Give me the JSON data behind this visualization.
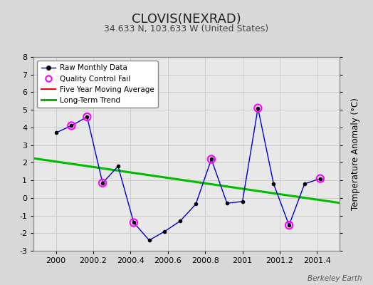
{
  "title": "CLOVIS(NEXRAD)",
  "subtitle": "34.633 N, 103.633 W (United States)",
  "watermark": "Berkeley Earth",
  "ylabel": "Temperature Anomaly (°C)",
  "ylim": [
    -3,
    8
  ],
  "yticks": [
    -3,
    -2,
    -1,
    0,
    1,
    2,
    3,
    4,
    5,
    6,
    7,
    8
  ],
  "xticks": [
    2000,
    2000.2,
    2000.4,
    2000.6,
    2000.8,
    2001,
    2001.2,
    2001.4
  ],
  "xlim": [
    1999.88,
    2001.52
  ],
  "fig_bg_color": "#d8d8d8",
  "plot_bg_color": "#e8e8e8",
  "raw_x": [
    2000.0,
    2000.083,
    2000.167,
    2000.25,
    2000.333,
    2000.417,
    2000.5,
    2000.583,
    2000.667,
    2000.75,
    2000.833,
    2000.917,
    2001.0,
    2001.083,
    2001.167,
    2001.25,
    2001.333,
    2001.417
  ],
  "raw_y": [
    3.7,
    4.1,
    4.6,
    0.85,
    1.8,
    -1.4,
    -2.4,
    -1.9,
    -1.3,
    -0.35,
    2.2,
    -0.3,
    -0.2,
    5.1,
    0.8,
    -1.55,
    0.8,
    1.1
  ],
  "qc_fail_x": [
    2000.083,
    2000.167,
    2000.25,
    2000.417,
    2000.833,
    2001.083,
    2001.25,
    2001.417
  ],
  "qc_fail_y": [
    4.1,
    4.6,
    0.85,
    -1.4,
    2.2,
    5.1,
    -1.55,
    1.1
  ],
  "trend_x": [
    1999.88,
    2001.52
  ],
  "trend_y": [
    2.25,
    -0.28
  ],
  "raw_color": "#0000cc",
  "raw_marker_color": "#000000",
  "qc_color": "#ff00ff",
  "trend_color": "#00bb00",
  "ma_color": "#ff0000",
  "grid_color": "#cccccc"
}
